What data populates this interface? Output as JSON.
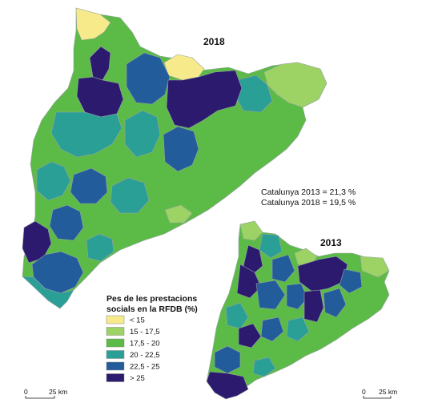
{
  "maps": {
    "large": {
      "year": "2018"
    },
    "small": {
      "year": "2013"
    }
  },
  "stats": {
    "line_2013": "Catalunya 2013 = 21,3 %",
    "line_2018": "Catalunya 2018 = 19,5 %"
  },
  "legend": {
    "title_line1": "Pes de les prestacions",
    "title_line2": "socials en la RFDB (%)",
    "classes": [
      {
        "label": "< 15",
        "color": "#f7ea8a"
      },
      {
        "label": "15  - 17,5",
        "color": "#9dd264"
      },
      {
        "label": "17,5 - 20",
        "color": "#5cba47"
      },
      {
        "label": "20 - 22,5",
        "color": "#2a9f96"
      },
      {
        "label": "22,5 - 25",
        "color": "#225c9b"
      },
      {
        "label": "> 25",
        "color": "#2b1a6e"
      }
    ]
  },
  "scale_bars": {
    "large": {
      "zero": "0",
      "distance": "25 km"
    },
    "small": {
      "zero": "0",
      "distance": "25 km"
    }
  }
}
